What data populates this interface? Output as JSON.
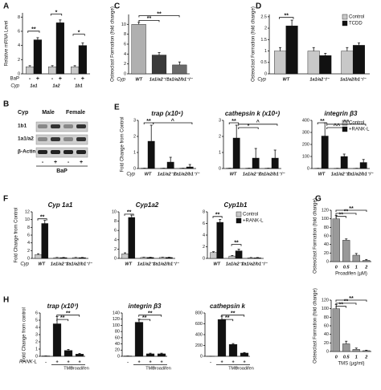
{
  "blot": {
    "letter": "B",
    "title": "Cyp",
    "groups": [
      "Male",
      "Female"
    ],
    "rows": [
      "1b1",
      "1a1/a2",
      "β-Actin"
    ],
    "treatment": "BaP",
    "lanes": [
      "-",
      "+",
      "-",
      "+"
    ]
  },
  "chart_data": [
    {
      "type": "bar",
      "letter": "A",
      "ylabel": "Relative mRNA Level",
      "ylim": [
        0,
        8.6
      ],
      "yticks": [
        0,
        2,
        4,
        6,
        8
      ],
      "xprefix": "Cyp",
      "treatment": "BaP",
      "categories": [
        "1a1",
        "1a2",
        "1b1"
      ],
      "series": [
        {
          "name": "-",
          "color": "#c8c8c8",
          "values": [
            1,
            1,
            1
          ],
          "errors": [
            0.15,
            0.15,
            0.15
          ]
        },
        {
          "name": "+",
          "color": "#111111",
          "values": [
            4.8,
            7.2,
            4.0
          ],
          "errors": [
            0.3,
            0.4,
            0.35
          ]
        }
      ],
      "annotations": [
        "**",
        "*",
        "*"
      ]
    },
    {
      "type": "bar",
      "letter": "C",
      "ylabel": "Osteoclast Formation (fold change)",
      "ylim": [
        0,
        12
      ],
      "yticks": [
        0,
        2,
        4,
        6,
        8,
        10
      ],
      "xprefix": "Cyp",
      "categories": [
        "WT",
        "1a1/a2⁻/⁻",
        "1a1/a2/b1⁻/⁻"
      ],
      "series": [
        {
          "colors": [
            "#b0b0b0",
            "#3a3a3a",
            "#6a6a6a"
          ],
          "values": [
            10,
            3.8,
            1.8
          ],
          "errors": [
            0.4,
            0.5,
            0.6
          ]
        }
      ],
      "annotations": [
        "**",
        "**"
      ]
    },
    {
      "type": "bar",
      "letter": "D",
      "ylabel": "Osteoclast Formation (fold change)",
      "ylim": [
        0,
        2.6
      ],
      "yticks": [
        0,
        0.5,
        1,
        1.5,
        2,
        2.5
      ],
      "xprefix": "Cyp",
      "categories": [
        "WT",
        "1a1/a2⁻/⁻",
        "1a1/a2/b1⁻/⁻"
      ],
      "legend": true,
      "series": [
        {
          "name": "Control",
          "color": "#c8c8c8",
          "values": [
            1,
            1,
            1
          ],
          "errors": [
            0.15,
            0.15,
            0.15
          ]
        },
        {
          "name": "TCDD",
          "color": "#111111",
          "values": [
            2.1,
            0.8,
            1.25
          ],
          "errors": [
            0.25,
            0.1,
            0.1
          ]
        }
      ],
      "annotations": [
        "**"
      ]
    },
    {
      "type": "bar",
      "letter": "E",
      "title": "trap (x10⁴)",
      "ylabel": "Fold Change from Control",
      "ylim": [
        0,
        3
      ],
      "yticks": [
        0,
        1,
        2,
        3
      ],
      "xprefix": "Cyp",
      "categories": [
        "WT",
        "1a1/a2⁻/⁻",
        "1a1/a2/b1⁻/⁻"
      ],
      "series": [
        {
          "color": "#c8c8c8",
          "values": [
            0.02,
            0.02,
            0.02
          ],
          "errors": [
            0,
            0,
            0
          ]
        },
        {
          "color": "#111111",
          "values": [
            1.7,
            0.4,
            0.1
          ],
          "errors": [
            1.0,
            0.3,
            0.15
          ]
        }
      ],
      "annotations": [
        "**",
        "^"
      ]
    },
    {
      "type": "bar",
      "title": "cathepsin k (x10⁴)",
      "ylim": [
        0,
        3
      ],
      "yticks": [
        0,
        1,
        2,
        3
      ],
      "categories": [
        "WT",
        "1a1/a2⁻/⁻",
        "1a1/a2/b1⁻/⁻"
      ],
      "series": [
        {
          "color": "#c8c8c8",
          "values": [
            0.02,
            0.02,
            0.02
          ],
          "errors": [
            0,
            0,
            0
          ]
        },
        {
          "color": "#111111",
          "values": [
            1.9,
            0.65,
            0.65
          ],
          "errors": [
            0.8,
            0.6,
            0.5
          ]
        }
      ],
      "annotations": [
        "**",
        "*",
        "^"
      ]
    },
    {
      "type": "bar",
      "title": "integrin β3",
      "ylim": [
        0,
        400
      ],
      "yticks": [
        0,
        100,
        200,
        300,
        400
      ],
      "categories": [
        "WT",
        "1a1/a2⁻/⁻",
        "1a1/a2/b1⁻/⁻"
      ],
      "legend": true,
      "series": [
        {
          "name": "Control",
          "color": "#c8c8c8",
          "values": [
            2,
            2,
            2
          ],
          "errors": [
            0,
            0,
            0
          ]
        },
        {
          "name": "+RANK-L",
          "color": "#111111",
          "values": [
            270,
            100,
            50
          ],
          "errors": [
            110,
            20,
            25
          ]
        }
      ],
      "annotations": [
        "**",
        "^^",
        "^^"
      ]
    },
    {
      "type": "bar",
      "letter": "F",
      "title": "Cyp 1a1",
      "ylabel": "Fold Change from Control",
      "ylim": [
        0,
        12
      ],
      "yticks": [
        0,
        2,
        4,
        6,
        8,
        10,
        12
      ],
      "xprefix": "Cyp",
      "categories": [
        "WT",
        "1a1/a2⁻/⁻",
        "1a1/a2/b1⁻/⁻"
      ],
      "series": [
        {
          "color": "#c8c8c8",
          "values": [
            1,
            0.2,
            0.2
          ],
          "errors": [
            0.2,
            0.05,
            0.05
          ]
        },
        {
          "color": "#111111",
          "values": [
            9,
            0.2,
            0.2
          ],
          "errors": [
            0.8,
            0.05,
            0.05
          ]
        }
      ],
      "annotations": [
        "**"
      ]
    },
    {
      "type": "bar",
      "title": "Cyp1a2",
      "ylim": [
        0,
        10
      ],
      "yticks": [
        0,
        2,
        4,
        6,
        8,
        10
      ],
      "categories": [
        "WT",
        "1a1/a2⁻/⁻",
        "1a1/a2/b1⁻/⁻"
      ],
      "series": [
        {
          "color": "#c8c8c8",
          "values": [
            1,
            0.2,
            0.2
          ],
          "errors": [
            0.2,
            0.05,
            0.05
          ]
        },
        {
          "color": "#111111",
          "values": [
            8.8,
            0.2,
            0.2
          ],
          "errors": [
            0.5,
            0.05,
            0.05
          ]
        }
      ],
      "annotations": [
        "**"
      ]
    },
    {
      "type": "bar",
      "title": "Cyp1b1",
      "ylim": [
        0,
        8
      ],
      "yticks": [
        0,
        2,
        4,
        6,
        8
      ],
      "categories": [
        "WT",
        "1a1/a2⁻/⁻",
        "1a1/a2/b1⁻/⁻"
      ],
      "legend": true,
      "series": [
        {
          "name": "Control",
          "color": "#c8c8c8",
          "values": [
            1,
            0.4,
            0.1
          ],
          "errors": [
            0.15,
            0.1,
            0.05
          ]
        },
        {
          "name": "+RANK-L",
          "color": "#111111",
          "values": [
            6.2,
            1.3,
            0.1
          ],
          "errors": [
            0.5,
            0.3,
            0.05
          ]
        }
      ],
      "annotations": [
        "**",
        "**"
      ]
    },
    {
      "type": "bar",
      "letter": "G",
      "ylabel": "Osteoclast Formation (fold change)",
      "ylim": [
        0,
        120
      ],
      "yticks": [
        0,
        20,
        40,
        60,
        80,
        100,
        120
      ],
      "xlabel": "Proadifen (µM)",
      "categories": [
        "0",
        "0.5",
        "1",
        "2"
      ],
      "series": [
        {
          "color": "#999999",
          "values": [
            100,
            50,
            15,
            3
          ],
          "errors": [
            8,
            3,
            4,
            2
          ]
        }
      ],
      "annotations": [
        "**",
        "**",
        "**"
      ]
    },
    {
      "type": "bar",
      "ylabel": "Osteoclast Formation (fold change)",
      "ylim": [
        0,
        120
      ],
      "yticks": [
        0,
        20,
        40,
        60,
        80,
        100,
        120
      ],
      "xlabel": "TMS (µg/ml)",
      "categories": [
        "0",
        "0.5",
        "1",
        "2"
      ],
      "series": [
        {
          "color": "#999999",
          "values": [
            100,
            18,
            5,
            2
          ],
          "errors": [
            10,
            6,
            3,
            1
          ]
        }
      ],
      "annotations": [
        "**",
        "**",
        "**"
      ]
    },
    {
      "type": "bar",
      "letter": "H",
      "title": "trap (x10³)",
      "ylabel": "Fold Change from control",
      "ylim": [
        0,
        6
      ],
      "yticks": [
        0,
        1,
        2,
        3,
        4,
        5,
        6
      ],
      "xprefix": "RANK-L",
      "categories": [
        "-",
        "+",
        "+",
        "+"
      ],
      "sublabels": [
        "TMS",
        "Proadifen"
      ],
      "series": [
        {
          "color": "#111111",
          "values": [
            0.05,
            4.5,
            0.8,
            0.3
          ],
          "errors": [
            0,
            1.0,
            0.15,
            0.1
          ]
        }
      ],
      "annotations": [
        "**",
        "**"
      ]
    },
    {
      "type": "bar",
      "title": "integrin β3",
      "ylim": [
        0,
        140
      ],
      "yticks": [
        0,
        20,
        40,
        60,
        80,
        100,
        120,
        140
      ],
      "categories": [
        "-",
        "+",
        "+",
        "+"
      ],
      "sublabels": [
        "TMS",
        "Proadifen"
      ],
      "series": [
        {
          "color": "#111111",
          "values": [
            1,
            110,
            8,
            8
          ],
          "errors": [
            0,
            10,
            2,
            2
          ]
        }
      ],
      "annotations": [
        "**",
        "**"
      ]
    },
    {
      "type": "bar",
      "title": "cathepsin k",
      "ylim": [
        0,
        800
      ],
      "yticks": [
        0,
        200,
        400,
        600,
        800
      ],
      "categories": [
        "-",
        "+",
        "+",
        "+"
      ],
      "sublabels": [
        "TMS",
        "Proadifen"
      ],
      "series": [
        {
          "color": "#111111",
          "values": [
            1,
            680,
            220,
            60
          ],
          "errors": [
            0,
            60,
            15,
            10
          ]
        }
      ],
      "annotations": [
        "**",
        "**"
      ]
    }
  ]
}
